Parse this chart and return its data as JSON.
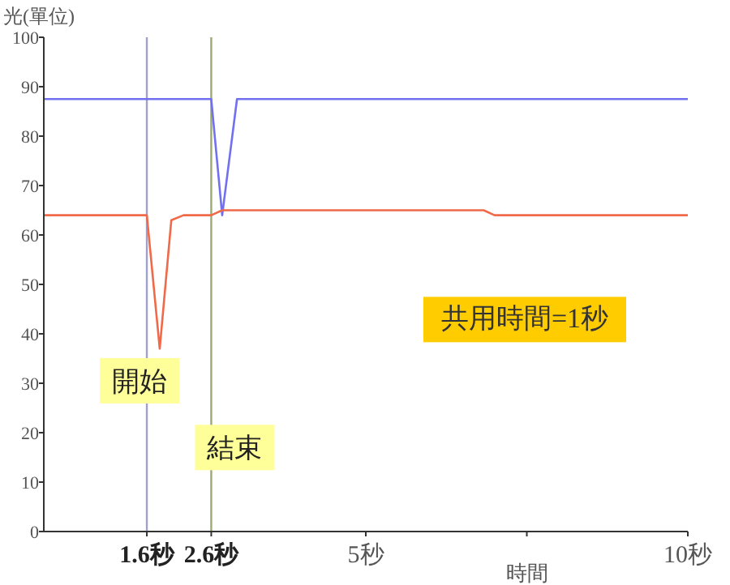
{
  "chart_data": {
    "type": "line",
    "ylabel": "光(單位)",
    "xlabel": "時間",
    "xlim": [
      0,
      10
    ],
    "ylim": [
      0,
      100
    ],
    "xticks": [
      {
        "value": 1.6,
        "label": "1.6秒"
      },
      {
        "value": 2.6,
        "label": "2.6秒"
      },
      {
        "value": 5,
        "label": "5秒"
      },
      {
        "value": 7.5,
        "label": null
      },
      {
        "value": 10,
        "label": "10秒"
      }
    ],
    "yticks": [
      0,
      10,
      20,
      30,
      40,
      50,
      60,
      70,
      80,
      90,
      100
    ],
    "grid": false,
    "marker": "none",
    "line_style": "solid",
    "series": [
      {
        "color": "#7070f0",
        "x": [
          0,
          2.6,
          2.77,
          3.0,
          10
        ],
        "values": [
          87.5,
          87.5,
          64,
          87.5,
          87.5
        ]
      },
      {
        "color": "#f06a4a",
        "x": [
          0,
          1.6,
          1.8,
          1.98,
          2.17,
          2.6,
          2.77,
          6.83,
          7.0,
          10
        ],
        "values": [
          64,
          64,
          37,
          63,
          64,
          64,
          65,
          65,
          64,
          64
        ]
      }
    ],
    "ref_lines": [
      {
        "axis": "x",
        "value": 1.6,
        "label": "開始",
        "color": "#a0a0c8"
      },
      {
        "axis": "x",
        "value": 2.6,
        "label": "結束",
        "color": "#9aaa70"
      }
    ],
    "annotations": [
      "共用時間=1秒"
    ]
  }
}
